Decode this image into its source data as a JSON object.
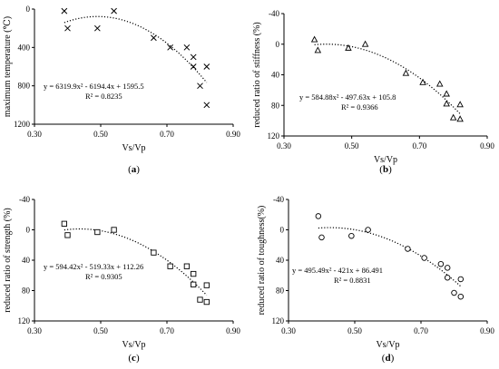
{
  "chart_data": [
    {
      "type": "scatter",
      "panel": "(a)",
      "caption_letter": "a",
      "xlabel": "Vs/Vp",
      "ylabel": "maximum temperature (℃)",
      "xlim": [
        0.3,
        0.9
      ],
      "ylim": [
        0,
        1200
      ],
      "y_reversed": true,
      "xticks": [
        "0.30",
        "0.50",
        "0.70",
        "0.90"
      ],
      "yticks": [
        "0",
        "400",
        "800",
        "1200"
      ],
      "marker": "x",
      "x": [
        0.39,
        0.4,
        0.49,
        0.54,
        0.66,
        0.71,
        0.76,
        0.78,
        0.78,
        0.8,
        0.82,
        0.82
      ],
      "y": [
        20,
        200,
        200,
        20,
        300,
        400,
        400,
        500,
        600,
        800,
        600,
        1000
      ],
      "trendline": {
        "a": 6319.9,
        "b": -6194.4,
        "c": 1595.5,
        "x_range": [
          0.39,
          0.82
        ]
      },
      "equation": "y = 6319.9x² - 6194.4x + 1595.5",
      "r2": "R² = 0.8235"
    },
    {
      "type": "scatter",
      "panel": "(b)",
      "caption_letter": "b",
      "xlabel": "Vs/Vp",
      "ylabel": "reduced ratio of stiffness (%)",
      "xlim": [
        0.3,
        0.9
      ],
      "ylim": [
        -40,
        120
      ],
      "y_reversed": true,
      "xticks": [
        "0.30",
        "0.50",
        "0.70",
        "0.90"
      ],
      "yticks": [
        "-40",
        "0",
        "40",
        "80",
        "120"
      ],
      "marker": "triangle",
      "x": [
        0.39,
        0.4,
        0.49,
        0.54,
        0.66,
        0.71,
        0.76,
        0.78,
        0.78,
        0.8,
        0.82,
        0.82
      ],
      "y": [
        -6,
        8,
        5,
        0,
        38,
        50,
        52,
        65,
        78,
        96,
        79,
        98
      ],
      "trendline": {
        "a": 584.88,
        "b": -497.63,
        "c": 105.8,
        "x_range": [
          0.39,
          0.82
        ]
      },
      "equation": "y = 584.88x² - 497.63x + 105.8",
      "r2": "R² = 0.9366"
    },
    {
      "type": "scatter",
      "panel": "(c)",
      "caption_letter": "c",
      "xlabel": "Vs/Vp",
      "ylabel": "reduced ratio of strength (%)",
      "xlim": [
        0.3,
        0.9
      ],
      "ylim": [
        -40,
        120
      ],
      "y_reversed": true,
      "xticks": [
        "0.30",
        "0.50",
        "0.70",
        "0.90"
      ],
      "yticks": [
        "-40",
        "0",
        "40",
        "80",
        "120"
      ],
      "marker": "square",
      "x": [
        0.39,
        0.4,
        0.49,
        0.54,
        0.66,
        0.71,
        0.76,
        0.78,
        0.78,
        0.8,
        0.82,
        0.82
      ],
      "y": [
        -8,
        7,
        3,
        0,
        30,
        48,
        48,
        58,
        72,
        92,
        73,
        95
      ],
      "trendline": {
        "a": 594.42,
        "b": -519.33,
        "c": 112.26,
        "x_range": [
          0.39,
          0.82
        ]
      },
      "equation": "y = 594.42x² - 519.33x + 112.26",
      "r2": "R² = 0.9305"
    },
    {
      "type": "scatter",
      "panel": "(d)",
      "caption_letter": "d",
      "xlabel": "Vs/Vp",
      "ylabel": "reduced ratio of toughness(%)",
      "xlim": [
        0.3,
        0.9
      ],
      "ylim": [
        -40,
        120
      ],
      "y_reversed": true,
      "xticks": [
        "0.30",
        "0.50",
        "0.70",
        "0.90"
      ],
      "yticks": [
        "-40",
        "0",
        "40",
        "80",
        "120"
      ],
      "marker": "circle",
      "x": [
        0.39,
        0.4,
        0.49,
        0.54,
        0.66,
        0.71,
        0.76,
        0.78,
        0.78,
        0.8,
        0.82,
        0.82
      ],
      "y": [
        -18,
        10,
        8,
        0,
        25,
        37,
        45,
        50,
        63,
        83,
        65,
        88
      ],
      "trendline": {
        "a": 495.49,
        "b": -421,
        "c": 86.491,
        "x_range": [
          0.39,
          0.82
        ]
      },
      "equation": "y = 495.49x² - 421x + 86.491",
      "r2": "R² = 0.8831"
    }
  ]
}
